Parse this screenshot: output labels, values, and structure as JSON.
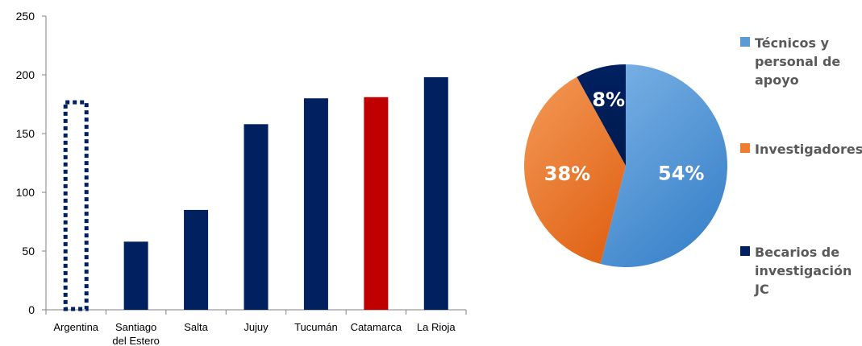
{
  "chart_data": [
    {
      "type": "bar",
      "categories": [
        "Argentina",
        "Santiago del Estero",
        "Salta",
        "Jujuy",
        "Tucumán",
        "Catamarca",
        "La Rioja"
      ],
      "values": [
        178,
        58,
        85,
        158,
        180,
        181,
        198
      ],
      "highlight": {
        "Argentina": "dotted-outline",
        "Catamarca": "#C00000"
      },
      "colors": {
        "default": "#002060",
        "highlight": "#C00000",
        "outline": "#002060"
      },
      "yticks": [
        0,
        50,
        100,
        150,
        200,
        250
      ],
      "ylim": [
        0,
        250
      ],
      "xlabel": "",
      "ylabel": "",
      "title": "",
      "grid": false
    },
    {
      "type": "pie",
      "slices": [
        {
          "label": "Técnicos y personal de apoyo",
          "value": 54,
          "display": "54%",
          "color": "#5B9BD5"
        },
        {
          "label": "Investigadores",
          "value": 38,
          "display": "38%",
          "color": "#ED7D31"
        },
        {
          "label": "Becarios de investigación JC",
          "value": 8,
          "display": "8%",
          "color": "#002060"
        }
      ],
      "legend_position": "right",
      "title": ""
    }
  ],
  "legend": [
    {
      "text": "Técnicos y personal de apoyo",
      "color": "#5B9BD5"
    },
    {
      "text": "Investigadores",
      "color": "#ED7D31"
    },
    {
      "text": "Becarios de investigación JC",
      "color": "#002060"
    }
  ]
}
